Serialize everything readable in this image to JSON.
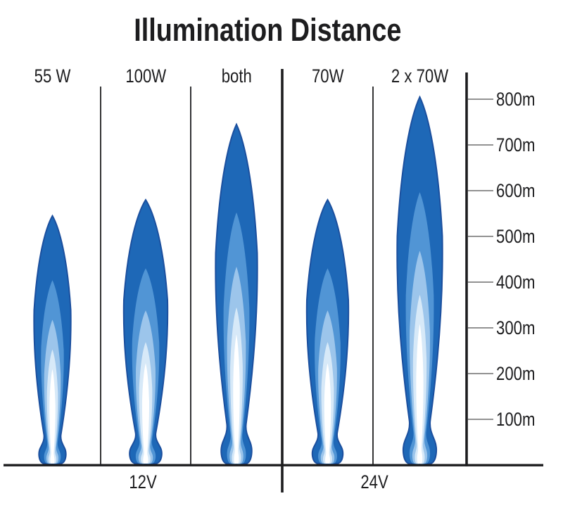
{
  "chart_data": {
    "type": "area",
    "title": "Illumination Distance",
    "subtitle": "",
    "unit": "m",
    "ylim": [
      0,
      870
    ],
    "grid": false,
    "legend_position": "none",
    "yaxis_side": "right",
    "yticks": [
      {
        "value": 800,
        "label": "800m"
      },
      {
        "value": 700,
        "label": "700m"
      },
      {
        "value": 600,
        "label": "600m"
      },
      {
        "value": 500,
        "label": "500m"
      },
      {
        "value": 400,
        "label": "400m"
      },
      {
        "value": 300,
        "label": "300m"
      },
      {
        "value": 200,
        "label": "200m"
      },
      {
        "value": 100,
        "label": "100m"
      }
    ],
    "groups": [
      {
        "label": "12V",
        "series": [
          "55 W",
          "100W",
          "both"
        ]
      },
      {
        "label": "24V",
        "series": [
          "70W",
          "2 x 70W"
        ]
      }
    ],
    "series": [
      {
        "label": "55 W",
        "group": "12V",
        "distance_m": 545
      },
      {
        "label": "100W",
        "group": "12V",
        "distance_m": 580
      },
      {
        "label": "both",
        "group": "12V",
        "distance_m": 745
      },
      {
        "label": "70W",
        "group": "24V",
        "distance_m": 580
      },
      {
        "label": "2 x 70W",
        "group": "24V",
        "distance_m": 805
      }
    ],
    "beam_colors": {
      "outline": "#1b4f9e",
      "layers": [
        "#1e68b7",
        "#5195d5",
        "#9cc5eb",
        "#d7e9f8",
        "#ffffff"
      ]
    },
    "line_color": "#1d1d1f",
    "tick_color": "#6f6f6f",
    "background": "#ffffff"
  }
}
